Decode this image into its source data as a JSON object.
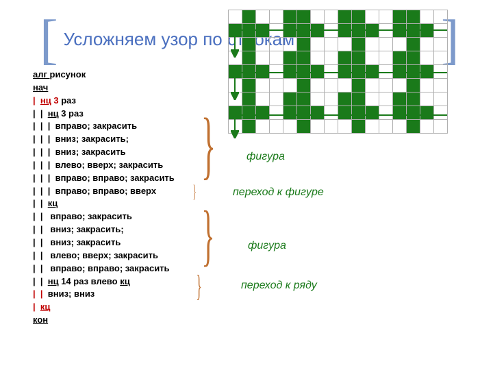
{
  "title": "Усложняем узор по строкам…",
  "code_lines": [
    {
      "indent": 0,
      "parts": [
        {
          "t": "алг ",
          "cls": "kw"
        },
        {
          "t": "рисунок"
        }
      ]
    },
    {
      "indent": 0,
      "parts": [
        {
          "t": "нач",
          "cls": "kw"
        }
      ]
    },
    {
      "indent": 0,
      "parts": [
        {
          "t": "|  ",
          "cls": "red"
        },
        {
          "t": "нц",
          "cls": "kw red"
        },
        {
          "t": " 3 ",
          "cls": "red"
        },
        {
          "t": "раз"
        }
      ]
    },
    {
      "indent": 0,
      "parts": [
        {
          "t": "|  |  "
        },
        {
          "t": "нц",
          "cls": "kw"
        },
        {
          "t": " 3 раз"
        }
      ]
    },
    {
      "indent": 0,
      "parts": [
        {
          "t": "|  |  |  вправо; закрасить"
        }
      ]
    },
    {
      "indent": 0,
      "parts": [
        {
          "t": "|  |  |  вниз; закрасить;"
        }
      ]
    },
    {
      "indent": 0,
      "parts": [
        {
          "t": "|  |  |  вниз; закрасить"
        }
      ]
    },
    {
      "indent": 0,
      "parts": [
        {
          "t": "|  |  |  влево; вверх; закрасить"
        }
      ]
    },
    {
      "indent": 0,
      "parts": [
        {
          "t": "|  |  |  вправо; вправо; закрасить"
        }
      ]
    },
    {
      "indent": 0,
      "parts": [
        {
          "t": "|  |  |  вправо; вправо; вверх"
        }
      ]
    },
    {
      "indent": 0,
      "parts": [
        {
          "t": "|  |  "
        },
        {
          "t": "кц",
          "cls": "kw"
        }
      ]
    },
    {
      "indent": 0,
      "parts": [
        {
          "t": "|  |   вправо; закрасить"
        }
      ]
    },
    {
      "indent": 0,
      "parts": [
        {
          "t": "|  |   вниз; закрасить;"
        }
      ]
    },
    {
      "indent": 0,
      "parts": [
        {
          "t": "|  |   вниз; закрасить"
        }
      ]
    },
    {
      "indent": 0,
      "parts": [
        {
          "t": "|  |   влево; вверх; закрасить"
        }
      ]
    },
    {
      "indent": 0,
      "parts": [
        {
          "t": "|  |   вправо; вправо; закрасить"
        }
      ]
    },
    {
      "indent": 0,
      "parts": [
        {
          "t": "|  |  "
        },
        {
          "t": "нц",
          "cls": "kw"
        },
        {
          "t": " 14 раз влево "
        },
        {
          "t": "кц",
          "cls": "kw"
        }
      ]
    },
    {
      "indent": 0,
      "parts": [
        {
          "t": "|  |  ",
          "cls": "red"
        },
        {
          "t": "вниз; вниз"
        }
      ]
    },
    {
      "indent": 0,
      "parts": [
        {
          "t": "|  ",
          "cls": "red"
        },
        {
          "t": "кц",
          "cls": "kw red"
        }
      ]
    },
    {
      "indent": 0,
      "parts": [
        {
          "t": "кон",
          "cls": "kw"
        }
      ]
    }
  ],
  "labels": {
    "fig1": "фигура",
    "trans_fig": "переход к фигуре",
    "fig2": "фигура",
    "trans_row": "переход к ряду"
  },
  "grid": {
    "cols": 16,
    "rows": 9,
    "green": [
      [
        0,
        1
      ],
      [
        0,
        4
      ],
      [
        0,
        5
      ],
      [
        0,
        8
      ],
      [
        0,
        9
      ],
      [
        0,
        12
      ],
      [
        0,
        13
      ],
      [
        1,
        0
      ],
      [
        1,
        1
      ],
      [
        1,
        2
      ],
      [
        1,
        4
      ],
      [
        1,
        5
      ],
      [
        1,
        6
      ],
      [
        1,
        8
      ],
      [
        1,
        9
      ],
      [
        1,
        10
      ],
      [
        1,
        12
      ],
      [
        1,
        13
      ],
      [
        1,
        14
      ],
      [
        2,
        1
      ],
      [
        2,
        5
      ],
      [
        2,
        9
      ],
      [
        2,
        13
      ],
      [
        3,
        1
      ],
      [
        3,
        4
      ],
      [
        3,
        5
      ],
      [
        3,
        8
      ],
      [
        3,
        9
      ],
      [
        3,
        12
      ],
      [
        3,
        13
      ],
      [
        4,
        0
      ],
      [
        4,
        1
      ],
      [
        4,
        2
      ],
      [
        4,
        4
      ],
      [
        4,
        5
      ],
      [
        4,
        6
      ],
      [
        4,
        8
      ],
      [
        4,
        9
      ],
      [
        4,
        10
      ],
      [
        4,
        12
      ],
      [
        4,
        13
      ],
      [
        4,
        14
      ],
      [
        5,
        1
      ],
      [
        5,
        5
      ],
      [
        5,
        9
      ],
      [
        5,
        13
      ],
      [
        6,
        1
      ],
      [
        6,
        4
      ],
      [
        6,
        5
      ],
      [
        6,
        8
      ],
      [
        6,
        9
      ],
      [
        6,
        12
      ],
      [
        6,
        13
      ],
      [
        7,
        0
      ],
      [
        7,
        1
      ],
      [
        7,
        2
      ],
      [
        7,
        4
      ],
      [
        7,
        5
      ],
      [
        7,
        6
      ],
      [
        7,
        8
      ],
      [
        7,
        9
      ],
      [
        7,
        10
      ],
      [
        7,
        12
      ],
      [
        7,
        13
      ],
      [
        7,
        14
      ],
      [
        8,
        1
      ],
      [
        8,
        5
      ],
      [
        8,
        9
      ],
      [
        8,
        13
      ]
    ]
  },
  "colors": {
    "title": "#4a6fbf",
    "bracket": "#7d9acb",
    "green": "#1a7a1a",
    "red": "#c00000",
    "brace": "#c07030"
  }
}
